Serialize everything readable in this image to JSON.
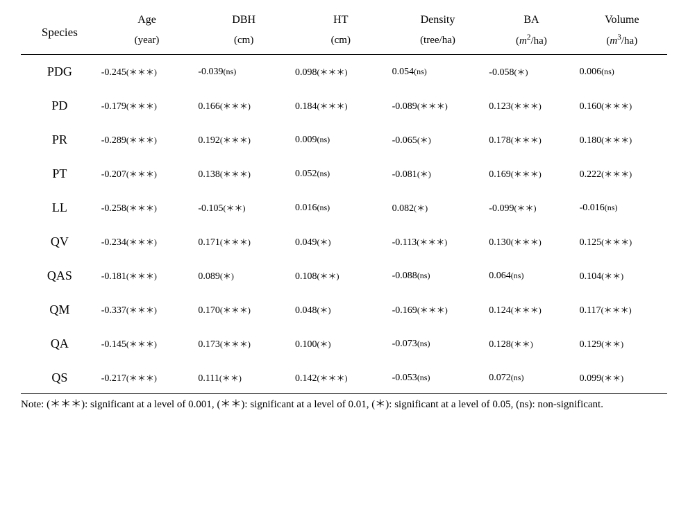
{
  "headers": {
    "species": "Species",
    "age_top": "Age",
    "age_bot": "(year)",
    "dbh_top": "DBH",
    "dbh_bot": "(cm)",
    "ht_top": "HT",
    "ht_bot": "(cm)",
    "density_top": "Density",
    "density_bot": "(tree/ha)",
    "ba_top": "BA",
    "vol_top": "Volume"
  },
  "rows": [
    {
      "sp": "PDG",
      "age": "-0.245",
      "age_s": "***",
      "dbh": "-0.039",
      "dbh_s": "ns",
      "ht": "0.098",
      "ht_s": "***",
      "den": "0.054",
      "den_s": "ns",
      "ba": "-0.058",
      "ba_s": "*",
      "vol": "0.006",
      "vol_s": "ns"
    },
    {
      "sp": "PD",
      "age": "-0.179",
      "age_s": "***",
      "dbh": "0.166",
      "dbh_s": "***",
      "ht": "0.184",
      "ht_s": "***",
      "den": "-0.089",
      "den_s": "***",
      "ba": "0.123",
      "ba_s": "***",
      "vol": "0.160",
      "vol_s": "***"
    },
    {
      "sp": "PR",
      "age": "-0.289",
      "age_s": "***",
      "dbh": "0.192",
      "dbh_s": "***",
      "ht": "0.009",
      "ht_s": "ns",
      "den": "-0.065",
      "den_s": "*",
      "ba": "0.178",
      "ba_s": "***",
      "vol": "0.180",
      "vol_s": "***"
    },
    {
      "sp": "PT",
      "age": "-0.207",
      "age_s": "***",
      "dbh": "0.138",
      "dbh_s": "***",
      "ht": "0.052",
      "ht_s": "ns",
      "den": "-0.081",
      "den_s": "*",
      "ba": "0.169",
      "ba_s": "***",
      "vol": "0.222",
      "vol_s": "***"
    },
    {
      "sp": "LL",
      "age": "-0.258",
      "age_s": "***",
      "dbh": "-0.105",
      "dbh_s": "**",
      "ht": "0.016",
      "ht_s": "ns",
      "den": "0.082",
      "den_s": "*",
      "ba": "-0.099",
      "ba_s": "**",
      "vol": "-0.016",
      "vol_s": "ns"
    },
    {
      "sp": "QV",
      "age": "-0.234",
      "age_s": "***",
      "dbh": "0.171",
      "dbh_s": "***",
      "ht": "0.049",
      "ht_s": "*",
      "den": "-0.113",
      "den_s": "***",
      "ba": "0.130",
      "ba_s": "***",
      "vol": "0.125",
      "vol_s": "***"
    },
    {
      "sp": "QAS",
      "age": "-0.181",
      "age_s": "***",
      "dbh": "0.089",
      "dbh_s": "*",
      "ht": "0.108",
      "ht_s": "**",
      "den": "-0.088",
      "den_s": "ns",
      "ba": "0.064",
      "ba_s": "ns",
      "vol": "0.104",
      "vol_s": "**"
    },
    {
      "sp": "QM",
      "age": "-0.337",
      "age_s": "***",
      "dbh": "0.170",
      "dbh_s": "***",
      "ht": "0.048",
      "ht_s": "*",
      "den": "-0.169",
      "den_s": "***",
      "ba": "0.124",
      "ba_s": "***",
      "vol": "0.117",
      "vol_s": "***"
    },
    {
      "sp": "QA",
      "age": "-0.145",
      "age_s": "***",
      "dbh": "0.173",
      "dbh_s": "***",
      "ht": "0.100",
      "ht_s": "*",
      "den": "-0.073",
      "den_s": "ns",
      "ba": "0.128",
      "ba_s": "**",
      "vol": "0.129",
      "vol_s": "**"
    },
    {
      "sp": "QS",
      "age": "-0.217",
      "age_s": "***",
      "dbh": "0.111",
      "dbh_s": "**",
      "ht": "0.142",
      "ht_s": "***",
      "den": "-0.053",
      "den_s": "ns",
      "ba": "0.072",
      "ba_s": "ns",
      "vol": "0.099",
      "vol_s": "**"
    }
  ],
  "note_prefix": "Note: ",
  "note_p1": "(＊＊＊): significant at a level of 0.001, ",
  "note_p2": "(＊＊): significant at a level of 0.01, ",
  "note_p3": "(＊): significant at a level of 0.05, ",
  "note_p4": "(ns): non-significant."
}
